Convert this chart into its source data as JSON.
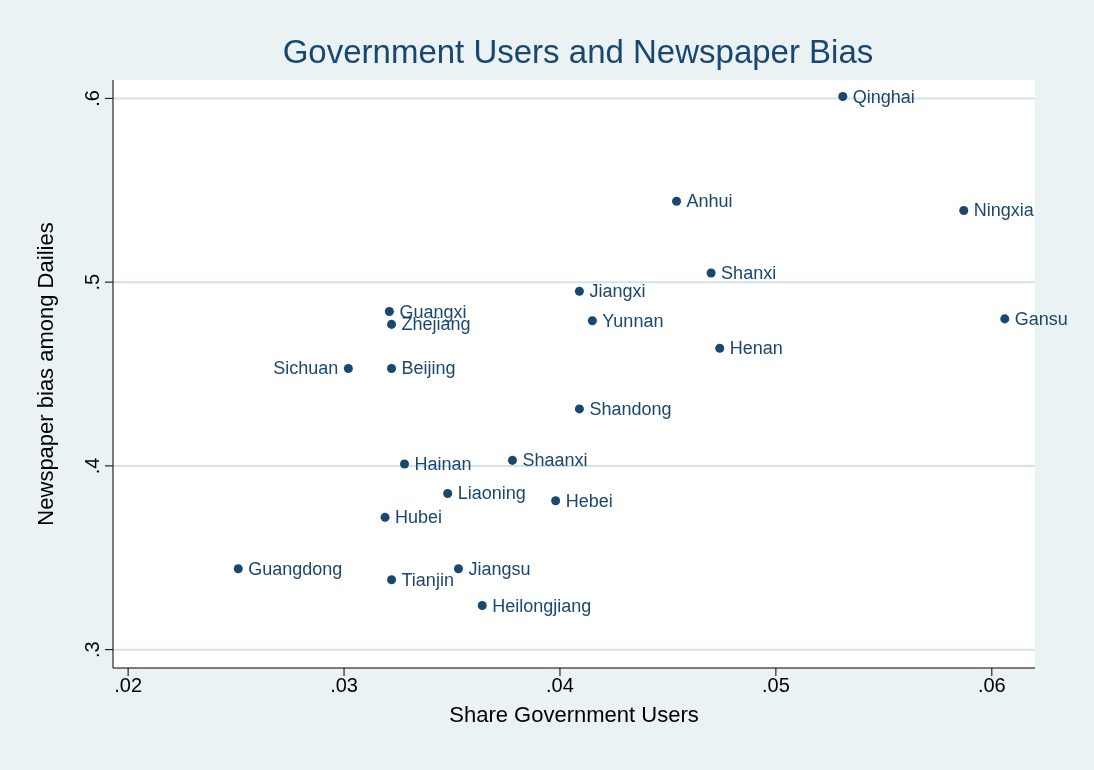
{
  "chart_data": {
    "type": "scatter",
    "title": "Government Users and Newspaper Bias",
    "xlabel": "Share Government Users",
    "ylabel": "Newspaper bias among Dailies",
    "xlim": [
      0.0193,
      0.062
    ],
    "ylim": [
      0.29,
      0.61
    ],
    "xticks": [
      {
        "value": 0.02,
        "label": ".02"
      },
      {
        "value": 0.03,
        "label": ".03"
      },
      {
        "value": 0.04,
        "label": ".04"
      },
      {
        "value": 0.05,
        "label": ".05"
      },
      {
        "value": 0.06,
        "label": ".06"
      }
    ],
    "yticks": [
      {
        "value": 0.3,
        "label": ".3"
      },
      {
        "value": 0.4,
        "label": ".4"
      },
      {
        "value": 0.5,
        "label": ".5"
      },
      {
        "value": 0.6,
        "label": ".6"
      }
    ],
    "grid": "y",
    "marker": "circle",
    "x": [
      0.0531,
      0.0454,
      0.0587,
      0.047,
      0.0409,
      0.0321,
      0.0322,
      0.0415,
      0.0606,
      0.0474,
      0.0302,
      0.0322,
      0.0409,
      0.0328,
      0.0378,
      0.0348,
      0.0398,
      0.0319,
      0.0251,
      0.0353,
      0.0322,
      0.0364
    ],
    "series": [
      {
        "color": "#1a476f",
        "values": [
          0.601,
          0.544,
          0.539,
          0.505,
          0.495,
          0.484,
          0.477,
          0.479,
          0.48,
          0.464,
          0.453,
          0.453,
          0.431,
          0.401,
          0.403,
          0.385,
          0.381,
          0.372,
          0.344,
          0.344,
          0.338,
          0.324
        ],
        "value_labels": [
          "Qinghai",
          "Anhui",
          "Ningxia",
          "Shanxi",
          "Jiangxi",
          "Guangxi",
          "Zhejiang",
          "Yunnan",
          "Gansu",
          "Henan",
          "Sichuan",
          "Beijing",
          "Shandong",
          "Hainan",
          "Shaanxi",
          "Liaoning",
          "Hebei",
          "Hubei",
          "Guangdong",
          "Jiangsu",
          "Tianjin",
          "Heilongjiang"
        ]
      }
    ]
  }
}
